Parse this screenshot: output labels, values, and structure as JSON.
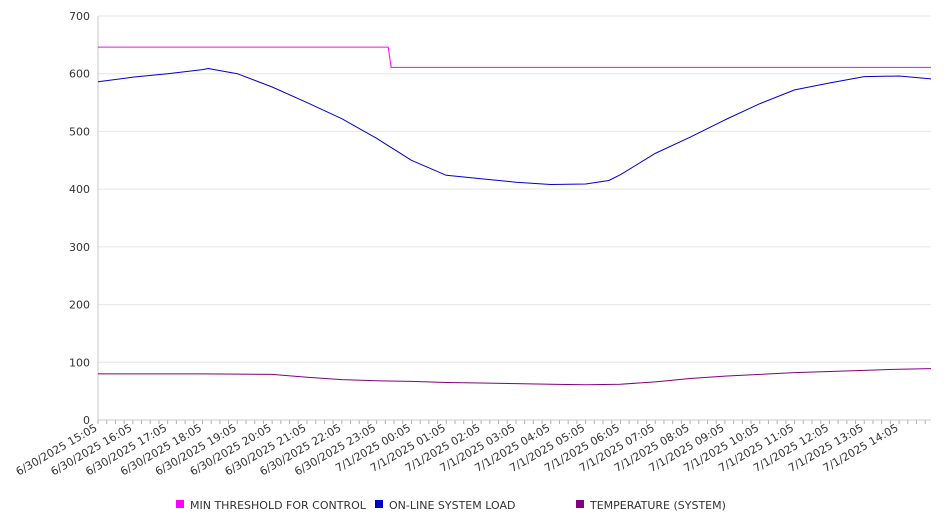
{
  "chart_data": {
    "type": "line",
    "title": "",
    "xlabel": "",
    "ylabel": "",
    "ylim": [
      0,
      700
    ],
    "yticks": [
      0,
      100,
      200,
      300,
      400,
      500,
      600,
      700
    ],
    "x_tick_labels": [
      "6/30/2025 15:05",
      "6/30/2025 16:05",
      "6/30/2025 17:05",
      "6/30/2025 18:05",
      "6/30/2025 19:05",
      "6/30/2025 20:05",
      "6/30/2025 21:05",
      "6/30/2025 22:05",
      "6/30/2025 23:05",
      "7/1/2025 00:05",
      "7/1/2025 01:05",
      "7/1/2025 02:05",
      "7/1/2025 03:05",
      "7/1/2025 04:05",
      "7/1/2025 05:05",
      "7/1/2025 06:05",
      "7/1/2025 07:05",
      "7/1/2025 08:05",
      "7/1/2025 09:05",
      "7/1/2025 10:05",
      "7/1/2025 11:05",
      "7/1/2025 12:05",
      "7/1/2025 13:05",
      "7/1/2025 14:05"
    ],
    "x_range": [
      "6/30/2025 15:05",
      "7/1/2025 15:00"
    ],
    "grid": true,
    "legend_position": "bottom",
    "series": [
      {
        "name": "MIN THRESHOLD FOR CONTROL",
        "color": "#ff00ff",
        "points": [
          [
            "6/30/2025 15:05",
            646
          ],
          [
            "6/30/2025 23:25",
            646
          ],
          [
            "6/30/2025 23:30",
            611
          ],
          [
            "7/1/2025 15:00",
            611
          ]
        ]
      },
      {
        "name": "ON-LINE SYSTEM LOAD",
        "color": "#0000cc",
        "points": [
          [
            "6/30/2025 15:05",
            586
          ],
          [
            "6/30/2025 16:05",
            594
          ],
          [
            "6/30/2025 17:05",
            600
          ],
          [
            "6/30/2025 18:05",
            607
          ],
          [
            "6/30/2025 18:15",
            609
          ],
          [
            "6/30/2025 19:05",
            600
          ],
          [
            "6/30/2025 20:05",
            577
          ],
          [
            "6/30/2025 21:05",
            550
          ],
          [
            "6/30/2025 22:05",
            522
          ],
          [
            "6/30/2025 23:05",
            488
          ],
          [
            "7/1/2025 00:05",
            450
          ],
          [
            "7/1/2025 01:05",
            424
          ],
          [
            "7/1/2025 02:05",
            418
          ],
          [
            "7/1/2025 03:05",
            412
          ],
          [
            "7/1/2025 04:05",
            408
          ],
          [
            "7/1/2025 05:05",
            409
          ],
          [
            "7/1/2025 05:45",
            415
          ],
          [
            "7/1/2025 06:05",
            425
          ],
          [
            "7/1/2025 07:05",
            462
          ],
          [
            "7/1/2025 08:05",
            490
          ],
          [
            "7/1/2025 09:05",
            520
          ],
          [
            "7/1/2025 10:05",
            548
          ],
          [
            "7/1/2025 11:05",
            572
          ],
          [
            "7/1/2025 12:05",
            584
          ],
          [
            "7/1/2025 13:05",
            595
          ],
          [
            "7/1/2025 14:05",
            596
          ],
          [
            "7/1/2025 15:00",
            591
          ]
        ]
      },
      {
        "name": "TEMPERATURE (SYSTEM)",
        "color": "#800080",
        "points": [
          [
            "6/30/2025 15:05",
            80
          ],
          [
            "6/30/2025 17:05",
            80
          ],
          [
            "6/30/2025 18:05",
            80
          ],
          [
            "6/30/2025 20:05",
            79
          ],
          [
            "6/30/2025 21:05",
            74
          ],
          [
            "6/30/2025 22:05",
            70
          ],
          [
            "6/30/2025 23:05",
            68
          ],
          [
            "7/1/2025 00:05",
            67
          ],
          [
            "7/1/2025 01:05",
            65
          ],
          [
            "7/1/2025 02:05",
            64
          ],
          [
            "7/1/2025 03:05",
            63
          ],
          [
            "7/1/2025 04:05",
            62
          ],
          [
            "7/1/2025 05:05",
            61
          ],
          [
            "7/1/2025 06:05",
            62
          ],
          [
            "7/1/2025 07:05",
            66
          ],
          [
            "7/1/2025 08:05",
            72
          ],
          [
            "7/1/2025 09:05",
            76
          ],
          [
            "7/1/2025 10:05",
            79
          ],
          [
            "7/1/2025 11:05",
            82
          ],
          [
            "7/1/2025 12:05",
            84
          ],
          [
            "7/1/2025 13:05",
            86
          ],
          [
            "7/1/2025 14:05",
            88
          ],
          [
            "7/1/2025 15:00",
            89
          ]
        ]
      }
    ]
  }
}
